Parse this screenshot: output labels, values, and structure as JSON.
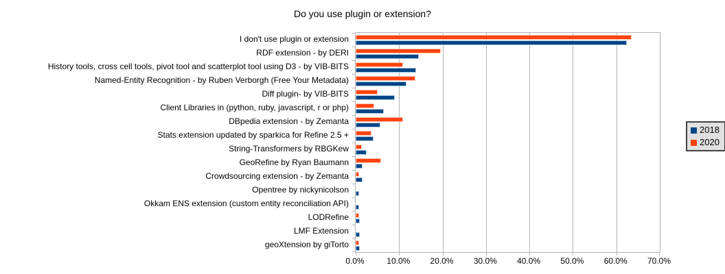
{
  "chart_data": {
    "type": "bar",
    "orientation": "horizontal",
    "title": "Do you use plugin or extension?",
    "categories": [
      "I don't use plugin or extension",
      "RDF extension - by DERI",
      "History tools, cross cell tools, pivot tool and scatterplot tool using D3 - by VIB-BITS",
      "Named-Entity Recognition - by Ruben Verborgh (Free Your Metadata)",
      "Diff plugin- by VIB-BITS",
      "Client Libraries in (python, ruby, javascript, r or php)",
      "DBpedia extension - by Zemanta",
      "Stats extension updated by sparkica for Refine 2.5 +",
      "String-Transformers by RBGKew",
      "GeoRefine by Ryan Baumann",
      "Crowdsourcing extension - by Zemanta",
      "Opentree by nickynicolson",
      "Okkam ENS extension (custom entity reconciliation API)",
      "LODRefine",
      "LMF Extension",
      "geoXtension by giTorto"
    ],
    "series": [
      {
        "name": "2018",
        "color": "#004586",
        "values": [
          62.4,
          14.6,
          13.9,
          11.7,
          9.0,
          6.5,
          5.7,
          4.1,
          2.5,
          1.6,
          1.6,
          0.8,
          0.8,
          1.0,
          0.9,
          0.9
        ]
      },
      {
        "name": "2020",
        "color": "#FF420E",
        "values": [
          63.6,
          19.6,
          10.9,
          13.7,
          5.1,
          4.3,
          10.9,
          3.7,
          1.5,
          5.8,
          0.8,
          0,
          0,
          0.8,
          0,
          0.8
        ]
      }
    ],
    "xlim": [
      0,
      70
    ],
    "xticks": [
      "0.0%",
      "10.0%",
      "20.0%",
      "30.0%",
      "40.0%",
      "50.0%",
      "60.0%",
      "70.0%"
    ],
    "grid": true,
    "grid_color": "#b3b3b3",
    "legend_position": "right",
    "legend_background": "#e0e0e0",
    "ylabel": "",
    "xlabel": ""
  }
}
